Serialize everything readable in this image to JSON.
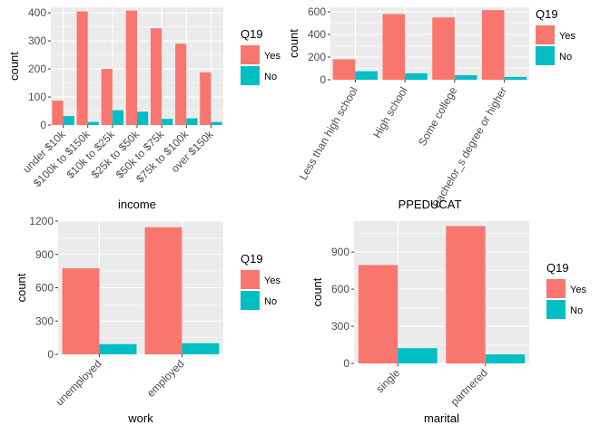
{
  "colors": {
    "Yes": "#F8766D",
    "No": "#00BFC4",
    "panel": "#EBEBEB",
    "grid": "#FFFFFF"
  },
  "chart_data": [
    {
      "type": "bar",
      "id": "income",
      "xlabel": "income",
      "ylabel": "count",
      "ylim": [
        0,
        420
      ],
      "yticks": [
        0,
        100,
        200,
        300,
        400
      ],
      "legend_title": "Q19",
      "categories": [
        "under $10k",
        "$100k to $150k",
        "$10k to $25k",
        "$25k to $50k",
        "$50k to $75k",
        "$75k to $100k",
        "over $150k"
      ],
      "series": [
        {
          "name": "Yes",
          "values": [
            87,
            405,
            200,
            408,
            345,
            290,
            188
          ]
        },
        {
          "name": "No",
          "values": [
            32,
            11,
            53,
            48,
            22,
            24,
            11
          ]
        }
      ],
      "grid": true,
      "legend": "right"
    },
    {
      "type": "bar",
      "id": "education",
      "xlabel": "PPEDUCAT",
      "ylabel": "count",
      "ylim": [
        0,
        640
      ],
      "yticks": [
        0,
        200,
        400,
        600
      ],
      "legend_title": "Q19",
      "categories": [
        "Less than high school",
        "High school",
        "Some college",
        "Bachelor_s degree or higher"
      ],
      "series": [
        {
          "name": "Yes",
          "values": [
            180,
            580,
            550,
            615
          ]
        },
        {
          "name": "No",
          "values": [
            75,
            57,
            40,
            25
          ]
        }
      ],
      "grid": true,
      "legend": "right"
    },
    {
      "type": "bar",
      "id": "work",
      "xlabel": "work",
      "ylabel": "count",
      "ylim": [
        0,
        1200
      ],
      "yticks": [
        0,
        300,
        600,
        900,
        1200
      ],
      "legend_title": "Q19",
      "categories": [
        "unemployed",
        "employed"
      ],
      "series": [
        {
          "name": "Yes",
          "values": [
            775,
            1145
          ]
        },
        {
          "name": "No",
          "values": [
            92,
            100
          ]
        }
      ],
      "grid": true,
      "legend": "right"
    },
    {
      "type": "bar",
      "id": "marital",
      "xlabel": "marital",
      "ylabel": "count",
      "ylim": [
        0,
        1150
      ],
      "yticks": [
        0,
        300,
        600,
        900
      ],
      "legend_title": "Q19",
      "categories": [
        "single",
        "partnered"
      ],
      "series": [
        {
          "name": "Yes",
          "values": [
            795,
            1110
          ]
        },
        {
          "name": "No",
          "values": [
            123,
            73
          ]
        }
      ],
      "grid": true,
      "legend": "right"
    }
  ]
}
